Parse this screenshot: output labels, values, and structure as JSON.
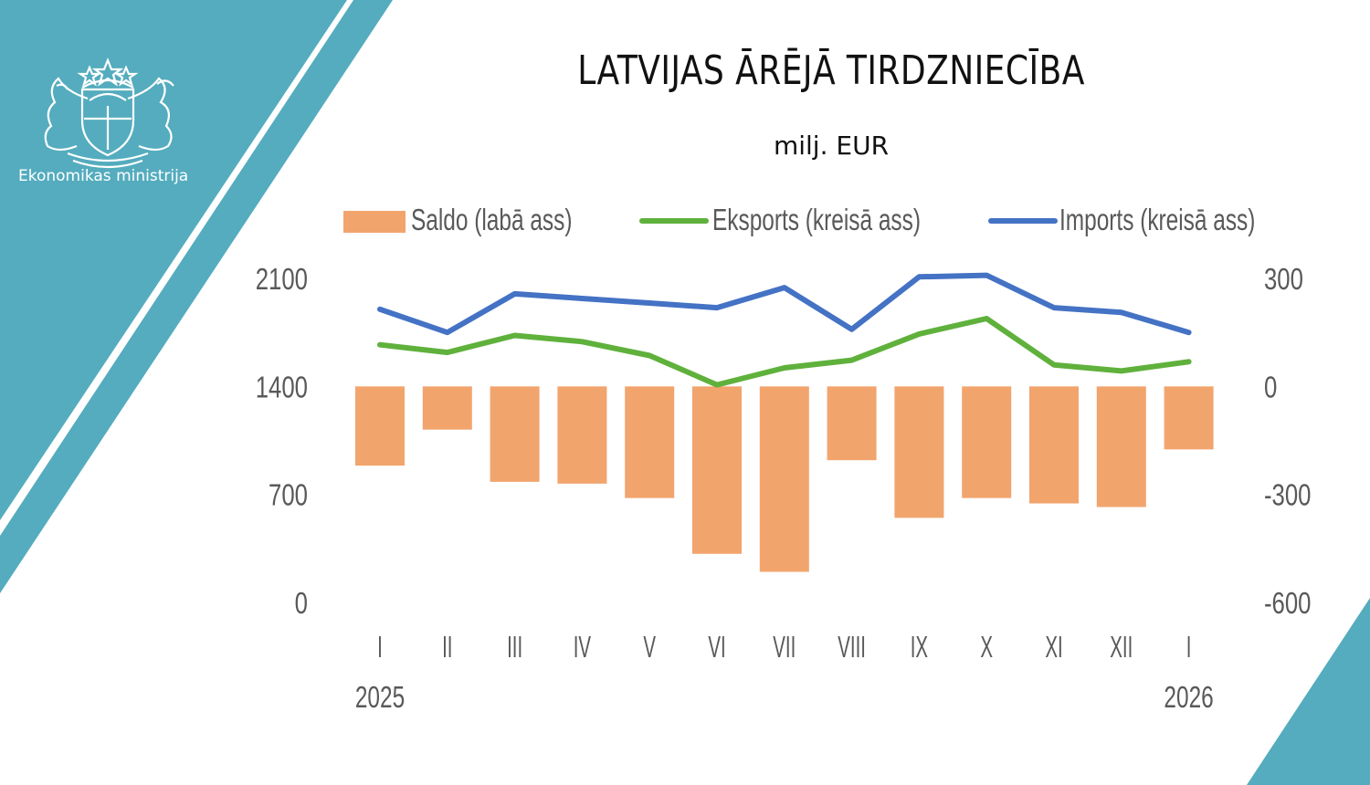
{
  "header": {
    "organization": "Ekonomikas ministrija",
    "title": "LATVIJAS ĀRĒJĀ TIRDZNIECĪBA",
    "subtitle": "milj. EUR"
  },
  "icons": {
    "logo": "latvia-coat-of-arms-icon"
  },
  "colors": {
    "decor_teal": "#54acbe",
    "saldo": "#f2a46d",
    "eksports": "#5fb13c",
    "imports": "#4472c4",
    "tick_text": "#595959"
  },
  "legend": {
    "saldo": "Saldo (labā ass)",
    "eksports": "Eksports (kreisā ass)",
    "imports": "Imports (kreisā ass)"
  },
  "chart_data": {
    "type": "bar",
    "categories": [
      "I",
      "II",
      "III",
      "IV",
      "V",
      "VI",
      "VII",
      "VIII",
      "IX",
      "X",
      "XI",
      "XII",
      "I"
    ],
    "year_labels": [
      {
        "index": 0,
        "label": "2025"
      },
      {
        "index": 12,
        "label": "2026"
      }
    ],
    "series": [
      {
        "name": "Saldo (labā ass)",
        "type": "bar",
        "axis": "right",
        "values": [
          -220,
          -120,
          -265,
          -270,
          -310,
          -465,
          -515,
          -205,
          -365,
          -310,
          -325,
          -335,
          -175
        ]
      },
      {
        "name": "Eksports (kreisā ass)",
        "type": "line",
        "axis": "left",
        "values": [
          1670,
          1620,
          1730,
          1690,
          1600,
          1410,
          1520,
          1570,
          1740,
          1840,
          1540,
          1500,
          1560
        ]
      },
      {
        "name": "Imports (kreisā ass)",
        "type": "line",
        "axis": "left",
        "values": [
          1900,
          1750,
          2000,
          1970,
          1940,
          1910,
          2040,
          1770,
          2110,
          2120,
          1910,
          1880,
          1750
        ]
      }
    ],
    "left_axis": {
      "ticks": [
        "2100",
        "1400",
        "700",
        "0"
      ],
      "ylim": [
        0,
        2100
      ]
    },
    "right_axis": {
      "ticks": [
        "300",
        "0",
        "-300",
        "-600"
      ],
      "ylim": [
        -600,
        300
      ]
    },
    "grid": false,
    "legend_position": "top"
  }
}
